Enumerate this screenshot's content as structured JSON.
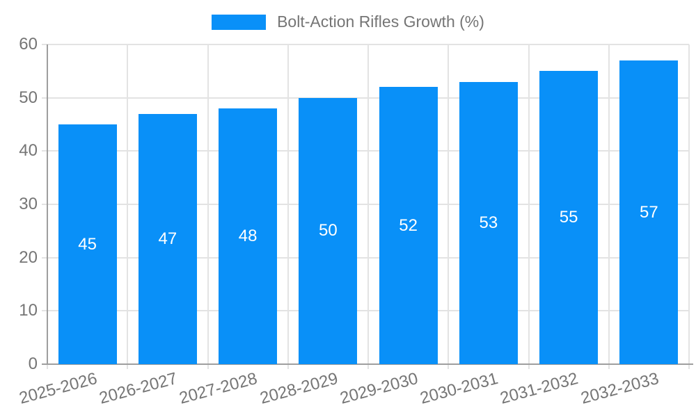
{
  "legend": {
    "label": "Bolt-Action Rifles Growth (%)"
  },
  "chart_data": {
    "type": "bar",
    "title": "",
    "xlabel": "",
    "ylabel": "",
    "categories": [
      "2025-2026",
      "2026-2027",
      "2027-2028",
      "2028-2029",
      "2029-2030",
      "2030-2031",
      "2031-2032",
      "2032-2033"
    ],
    "series": [
      {
        "name": "Bolt-Action Rifles Growth (%)",
        "values": [
          45,
          47,
          48,
          50,
          52,
          53,
          55,
          57
        ]
      }
    ],
    "value_labels_position": "inside-center",
    "ylim": [
      0,
      60
    ],
    "yticks": [
      0,
      10,
      20,
      30,
      40,
      50,
      60
    ],
    "grid": true,
    "legend_position": "top",
    "colors": {
      "bar": "#0990F8",
      "grid": "#e3e3e3",
      "axis": "#9e9e9e",
      "tick_text": "#757575",
      "value_text": "#ffffff",
      "background": "#ffffff"
    }
  }
}
